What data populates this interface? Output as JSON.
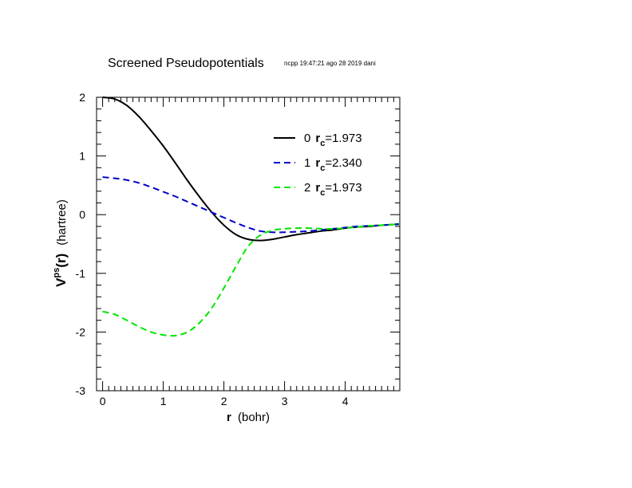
{
  "chart_data": {
    "type": "line",
    "title": "Screened Pseudopotentials",
    "stamp": "ncpp 19:47:21 ago 28 2019 dani",
    "xlabel_main": "r",
    "xlabel_unit": "(bohr)",
    "ylabel_main": "V",
    "ylabel_sup": "ps",
    "ylabel_arg": "(r)",
    "ylabel_unit": "(hartree)",
    "xlim": [
      -0.1,
      4.9
    ],
    "ylim": [
      -3,
      2
    ],
    "xticks": [
      0,
      1,
      2,
      3,
      4
    ],
    "xtick_labels": [
      "0",
      "1",
      "2",
      "3",
      "4"
    ],
    "yticks": [
      2,
      1,
      0,
      -1,
      -2,
      -3
    ],
    "ytick_labels": [
      "2",
      "1",
      "0",
      "-1",
      "-2",
      "-3"
    ],
    "grid": false,
    "legend_position": "top-right",
    "series": [
      {
        "name": "0",
        "rc_label": "r",
        "rc_sub": "c",
        "rc_value": "=1.973",
        "color": "#000000",
        "dash": "solid",
        "x": [
          0,
          0.2,
          0.4,
          0.6,
          0.8,
          1.0,
          1.2,
          1.4,
          1.6,
          1.8,
          2.0,
          2.2,
          2.4,
          2.6,
          2.8,
          3.0,
          3.2,
          3.4,
          3.6,
          3.8,
          4.0,
          4.2,
          4.4,
          4.6,
          4.9
        ],
        "y": [
          2.0,
          1.97,
          1.86,
          1.67,
          1.43,
          1.17,
          0.88,
          0.58,
          0.3,
          0.04,
          -0.18,
          -0.34,
          -0.42,
          -0.44,
          -0.42,
          -0.38,
          -0.34,
          -0.31,
          -0.28,
          -0.26,
          -0.23,
          -0.21,
          -0.2,
          -0.18,
          -0.16
        ]
      },
      {
        "name": "1",
        "rc_label": "r",
        "rc_sub": "c",
        "rc_value": "=2.340",
        "color": "#0000c8",
        "dash": "dashed",
        "x": [
          0,
          0.2,
          0.4,
          0.6,
          0.8,
          1.0,
          1.2,
          1.4,
          1.6,
          1.8,
          2.0,
          2.2,
          2.4,
          2.6,
          2.8,
          3.0,
          3.2,
          3.4,
          3.6,
          3.8,
          4.0,
          4.2,
          4.4,
          4.6,
          4.9
        ],
        "y": [
          0.64,
          0.62,
          0.59,
          0.54,
          0.47,
          0.39,
          0.31,
          0.22,
          0.13,
          0.04,
          -0.05,
          -0.14,
          -0.22,
          -0.28,
          -0.3,
          -0.3,
          -0.29,
          -0.28,
          -0.26,
          -0.24,
          -0.22,
          -0.2,
          -0.19,
          -0.18,
          -0.16
        ]
      },
      {
        "name": "2",
        "rc_label": "r",
        "rc_sub": "c",
        "rc_value": "=1.973",
        "color": "#00e600",
        "dash": "dashed",
        "x": [
          0,
          0.2,
          0.4,
          0.6,
          0.8,
          1.0,
          1.2,
          1.4,
          1.6,
          1.8,
          2.0,
          2.2,
          2.4,
          2.6,
          2.8,
          3.0,
          3.2,
          3.4,
          3.6,
          3.8,
          4.0,
          4.2,
          4.4,
          4.6,
          4.9
        ],
        "y": [
          -1.65,
          -1.7,
          -1.8,
          -1.91,
          -2.0,
          -2.05,
          -2.06,
          -2.0,
          -1.84,
          -1.59,
          -1.25,
          -0.88,
          -0.54,
          -0.35,
          -0.27,
          -0.24,
          -0.23,
          -0.23,
          -0.24,
          -0.24,
          -0.23,
          -0.21,
          -0.19,
          -0.18,
          -0.16
        ]
      }
    ]
  }
}
